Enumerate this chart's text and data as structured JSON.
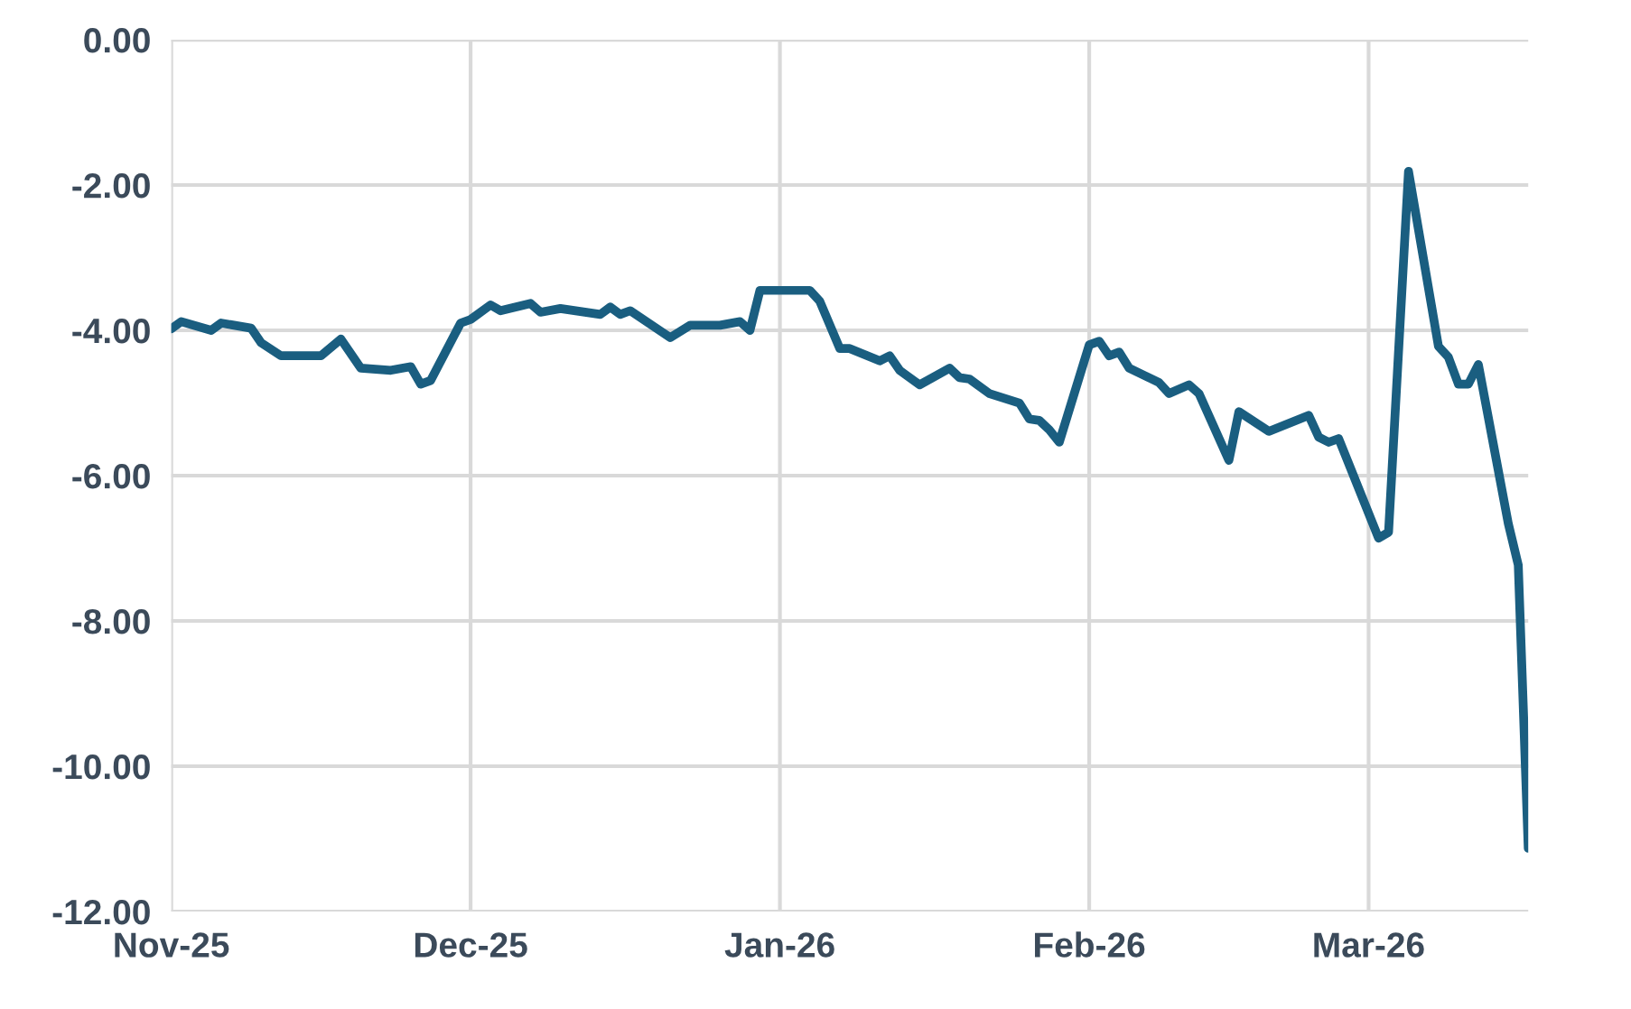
{
  "chart_data": {
    "type": "line",
    "x": [
      "2025-11-01",
      "2025-11-02",
      "2025-11-05",
      "2025-11-06",
      "2025-11-09",
      "2025-11-10",
      "2025-11-12",
      "2025-11-16",
      "2025-11-18",
      "2025-11-20",
      "2025-11-23",
      "2025-11-25",
      "2025-11-26",
      "2025-11-27",
      "2025-11-30",
      "2025-12-01",
      "2025-12-03",
      "2025-12-04",
      "2025-12-07",
      "2025-12-08",
      "2025-12-10",
      "2025-12-14",
      "2025-12-15",
      "2025-12-16",
      "2025-12-17",
      "2025-12-21",
      "2025-12-23",
      "2025-12-26",
      "2025-12-28",
      "2025-12-29",
      "2025-12-30",
      "2026-01-04",
      "2026-01-05",
      "2026-01-07",
      "2026-01-08",
      "2026-01-11",
      "2026-01-12",
      "2026-01-13",
      "2026-01-15",
      "2026-01-18",
      "2026-01-19",
      "2026-01-20",
      "2026-01-22",
      "2026-01-25",
      "2026-01-26",
      "2026-01-27",
      "2026-01-28",
      "2026-01-29",
      "2026-02-01",
      "2026-02-02",
      "2026-02-03",
      "2026-02-04",
      "2026-02-05",
      "2026-02-08",
      "2026-02-09",
      "2026-02-11",
      "2026-02-12",
      "2026-02-15",
      "2026-02-16",
      "2026-02-19",
      "2026-02-23",
      "2026-02-24",
      "2026-02-25",
      "2026-02-26",
      "2026-03-02",
      "2026-03-03",
      "2026-03-05",
      "2026-03-08",
      "2026-03-09",
      "2026-03-10",
      "2026-03-11",
      "2026-03-12",
      "2026-03-15",
      "2026-03-16",
      "2026-03-17"
    ],
    "series": [
      {
        "color": "#1a5e80",
        "values": [
          -3.98,
          -3.88,
          -4.0,
          -3.9,
          -3.97,
          -4.17,
          -4.35,
          -4.35,
          -4.12,
          -4.52,
          -4.55,
          -4.5,
          -4.74,
          -4.69,
          -3.9,
          -3.85,
          -3.65,
          -3.73,
          -3.63,
          -3.75,
          -3.7,
          -3.78,
          -3.68,
          -3.78,
          -3.73,
          -4.1,
          -3.93,
          -3.93,
          -3.88,
          -4.0,
          -3.45,
          -3.45,
          -3.6,
          -4.25,
          -4.25,
          -4.42,
          -4.35,
          -4.55,
          -4.75,
          -4.52,
          -4.65,
          -4.67,
          -4.87,
          -5.0,
          -5.22,
          -5.24,
          -5.37,
          -5.54,
          -4.2,
          -4.15,
          -4.35,
          -4.3,
          -4.52,
          -4.72,
          -4.87,
          -4.75,
          -4.87,
          -5.79,
          -5.12,
          -5.39,
          -5.17,
          -5.47,
          -5.54,
          -5.49,
          -6.86,
          -6.78,
          -1.81,
          -4.22,
          -4.37,
          -4.74,
          -4.74,
          -4.47,
          -6.66,
          -7.23,
          -11.13
        ]
      }
    ],
    "xlim": [
      "2025-11-01",
      "2026-03-17"
    ],
    "xticks": [
      {
        "value": "2025-11-01",
        "label": "Nov-25"
      },
      {
        "value": "2025-12-01",
        "label": "Dec-25"
      },
      {
        "value": "2026-01-01",
        "label": "Jan-26"
      },
      {
        "value": "2026-02-01",
        "label": "Feb-26"
      },
      {
        "value": "2026-03-01",
        "label": "Mar-26"
      }
    ],
    "ylim": [
      -12,
      0
    ],
    "yticks": [
      {
        "value": 0,
        "label": "0.00"
      },
      {
        "value": -2,
        "label": "-2.00"
      },
      {
        "value": -4,
        "label": "-4.00"
      },
      {
        "value": -6,
        "label": "-6.00"
      },
      {
        "value": -8,
        "label": "-8.00"
      },
      {
        "value": -10,
        "label": "-10.00"
      },
      {
        "value": -12,
        "label": "-12.00"
      }
    ],
    "grid": true,
    "line_style": "solid"
  }
}
